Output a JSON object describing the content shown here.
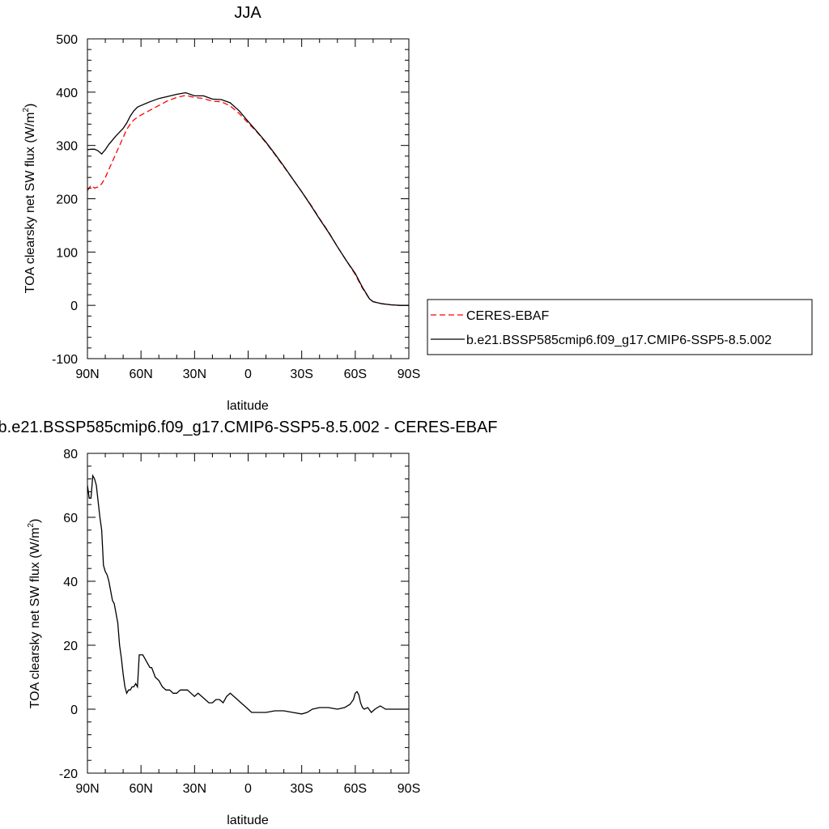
{
  "chart_data": [
    {
      "type": "line",
      "title": "JJA",
      "xlabel": "latitude",
      "ylabel": "TOA clearsky net SW flux (W/m",
      "ylabel_sup": "2",
      "ylabel_close": ")",
      "xlim": [
        90,
        -90
      ],
      "ylim": [
        -100,
        500
      ],
      "xticks": [
        90,
        60,
        30,
        0,
        -30,
        -60,
        -90
      ],
      "xtick_labels": [
        "90N",
        "60N",
        "30N",
        "0",
        "30S",
        "60S",
        "90S"
      ],
      "yticks": [
        -100,
        0,
        100,
        200,
        300,
        400,
        500
      ],
      "ytick_labels": [
        "-100",
        "0",
        "100",
        "200",
        "300",
        "400",
        "500"
      ],
      "legend_position": "right",
      "series": [
        {
          "name": "CERES-EBAF",
          "color": "#ff0000",
          "dash": "dashed",
          "x": [
            90,
            88,
            86,
            84,
            82,
            80,
            78,
            76,
            74,
            72,
            70,
            68,
            66,
            64,
            62,
            60,
            55,
            50,
            45,
            40,
            35,
            30,
            25,
            20,
            15,
            10,
            5,
            0,
            -5,
            -10,
            -15,
            -20,
            -25,
            -30,
            -35,
            -40,
            -45,
            -50,
            -55,
            -60,
            -62,
            -64,
            -66,
            -68,
            -70,
            -75,
            -80,
            -85,
            -90
          ],
          "y": [
            215,
            225,
            220,
            222,
            228,
            240,
            255,
            270,
            285,
            300,
            315,
            330,
            340,
            348,
            353,
            357,
            366,
            375,
            384,
            390,
            394,
            390,
            388,
            383,
            382,
            374,
            360,
            342,
            325,
            305,
            283,
            260,
            237,
            213,
            189,
            163,
            138,
            110,
            84,
            58,
            45,
            32,
            22,
            12,
            7,
            3,
            1,
            0,
            0
          ]
        },
        {
          "name": "b.e21.BSSP585cmip6.f09_g17.CMIP6-SSP5-8.5.002",
          "color": "#000000",
          "dash": "solid",
          "x": [
            90,
            88,
            86,
            84,
            82,
            80,
            78,
            76,
            74,
            72,
            70,
            68,
            66,
            64,
            62,
            60,
            55,
            50,
            45,
            40,
            35,
            30,
            25,
            20,
            15,
            10,
            5,
            0,
            -5,
            -10,
            -15,
            -20,
            -25,
            -30,
            -35,
            -40,
            -45,
            -50,
            -55,
            -60,
            -62,
            -64,
            -66,
            -68,
            -70,
            -75,
            -80,
            -85,
            -90
          ],
          "y": [
            292,
            293,
            293,
            290,
            284,
            292,
            302,
            310,
            318,
            325,
            332,
            342,
            355,
            365,
            372,
            375,
            382,
            388,
            392,
            396,
            399,
            393,
            393,
            387,
            386,
            380,
            365,
            345,
            326,
            306,
            284,
            261,
            237,
            213,
            188,
            162,
            137,
            110,
            84,
            60,
            47,
            34,
            23,
            12,
            7,
            3,
            1,
            0,
            0
          ]
        }
      ]
    },
    {
      "type": "line",
      "title": "b.e21.BSSP585cmip6.f09_g17.CMIP6-SSP5-8.5.002 - CERES-EBAF",
      "xlabel": "latitude",
      "ylabel": "TOA clearsky net SW flux (W/m",
      "ylabel_sup": "2",
      "ylabel_close": ")",
      "xlim": [
        90,
        -90
      ],
      "ylim": [
        -20,
        80
      ],
      "xticks": [
        90,
        60,
        30,
        0,
        -30,
        -60,
        -90
      ],
      "xtick_labels": [
        "90N",
        "60N",
        "30N",
        "0",
        "30S",
        "60S",
        "90S"
      ],
      "yticks": [
        -20,
        0,
        20,
        40,
        60,
        80
      ],
      "ytick_labels": [
        "-20",
        "0",
        "20",
        "40",
        "60",
        "80"
      ],
      "series": [
        {
          "color": "#000000",
          "dash": "solid",
          "x": [
            90,
            89,
            88,
            87,
            86,
            85,
            84,
            83,
            82,
            81,
            80,
            79,
            78,
            77,
            76,
            75,
            74,
            73,
            72,
            71,
            70,
            69,
            68,
            67,
            66,
            65,
            64,
            63,
            62,
            61,
            60,
            59,
            58,
            57,
            56,
            55,
            54,
            52,
            50,
            48,
            46,
            44,
            42,
            40,
            38,
            36,
            34,
            32,
            30,
            28,
            26,
            24,
            22,
            20,
            18,
            16,
            14,
            12,
            10,
            8,
            6,
            4,
            2,
            0,
            -2,
            -4,
            -6,
            -8,
            -10,
            -15,
            -20,
            -25,
            -30,
            -33,
            -36,
            -40,
            -45,
            -50,
            -54,
            -57,
            -59,
            -60,
            -61,
            -62,
            -63,
            -64,
            -65,
            -67,
            -69,
            -71,
            -74,
            -77,
            -80,
            -85,
            -90
          ],
          "y": [
            70,
            66,
            66,
            73,
            72,
            70,
            65,
            60,
            56,
            45,
            43,
            42,
            40,
            37,
            34,
            33,
            30,
            27,
            20,
            16,
            11,
            7,
            5,
            6,
            6,
            7,
            7,
            8,
            7,
            17,
            17,
            17,
            16,
            15,
            14,
            13,
            13,
            10,
            9,
            7,
            6,
            6,
            5,
            5,
            6,
            6,
            6,
            5,
            4,
            5,
            4,
            3,
            2,
            2,
            3,
            3,
            2,
            4,
            5,
            4,
            3,
            2,
            1,
            0,
            -1,
            -1,
            -1,
            -1,
            -1,
            -0.5,
            -0.5,
            -1,
            -1.5,
            -1,
            0,
            0.5,
            0.5,
            0,
            0.5,
            1.5,
            3,
            5,
            5.5,
            4.5,
            2,
            0.5,
            0,
            0.5,
            -1,
            0,
            1,
            0,
            0,
            0,
            0
          ]
        }
      ]
    }
  ]
}
